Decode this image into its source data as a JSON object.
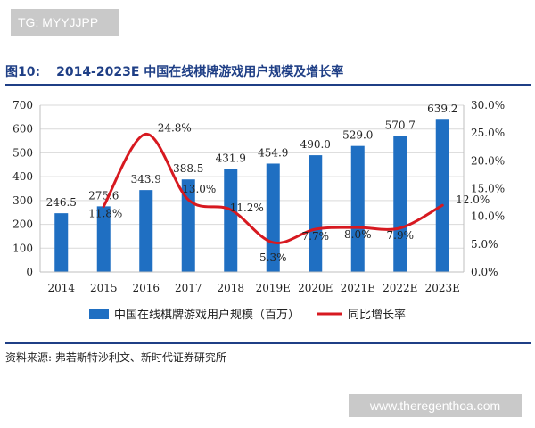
{
  "tag": "TG: MYYJJPP",
  "figure": {
    "number": "图10:",
    "title": "2014-2023E 中国在线棋牌游戏用户规模及增长率"
  },
  "source": "资料来源: 弗若斯特沙利文、新时代证券研究所",
  "watermark": "www.theregenthoa.com",
  "colors": {
    "bar": "#1f6fc2",
    "line": "#d71920",
    "title": "#1f3f86",
    "grid": "#d9d9d9"
  },
  "chart_data": {
    "type": "bar+line",
    "categories": [
      "2014",
      "2015",
      "2016",
      "2017",
      "2018",
      "2019E",
      "2020E",
      "2021E",
      "2022E",
      "2023E"
    ],
    "series": [
      {
        "name": "中国在线棋牌游戏用户规模（百万）",
        "type": "bar",
        "axis": "left",
        "values": [
          246.5,
          275.6,
          343.9,
          388.5,
          431.9,
          454.9,
          490.0,
          529.0,
          570.7,
          639.2
        ],
        "labels": [
          "246.5",
          "275.6",
          "343.9",
          "388.5",
          "431.9",
          "454.9",
          "490.0",
          "529.0",
          "570.7",
          "639.2"
        ]
      },
      {
        "name": "同比增长率",
        "type": "line",
        "axis": "right",
        "values": [
          null,
          11.8,
          24.8,
          13.0,
          11.2,
          5.3,
          7.7,
          8.0,
          7.9,
          12.0
        ],
        "labels": [
          "",
          "11.8%",
          "24.8%",
          "13.0%",
          "11.2%",
          "5.3%",
          "7.7%",
          "8.0%",
          "7.9%",
          "12.0%"
        ]
      }
    ],
    "y_left": {
      "min": 0,
      "max": 700,
      "ticks": [
        "0",
        "100",
        "200",
        "300",
        "400",
        "500",
        "600",
        "700"
      ]
    },
    "y_right": {
      "min": 0,
      "max": 30,
      "ticks": [
        "0.0%",
        "5.0%",
        "10.0%",
        "15.0%",
        "20.0%",
        "25.0%",
        "30.0%"
      ]
    },
    "legend_position": "bottom"
  }
}
